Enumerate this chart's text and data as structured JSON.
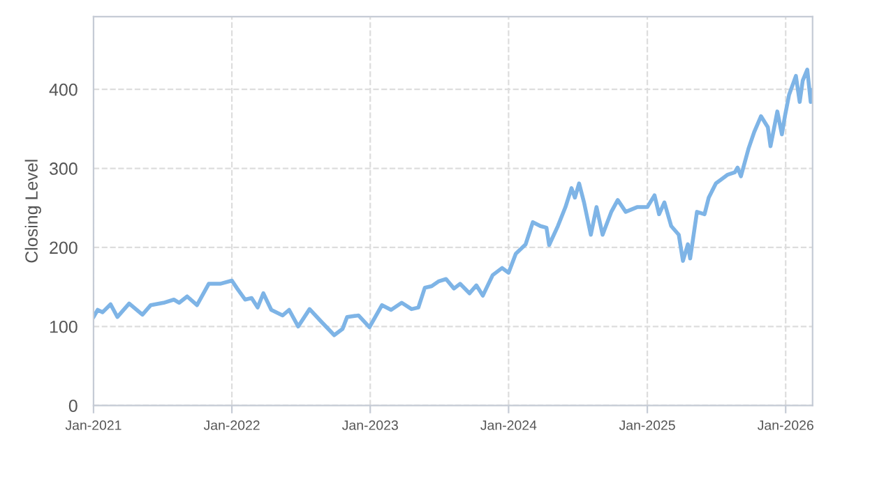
{
  "chart_data": {
    "type": "line",
    "ylabel": "Closing Level",
    "xlim": [
      "2021-01-01",
      "2026-03-13"
    ],
    "ylim": [
      0,
      492
    ],
    "yticks": [
      0,
      100,
      200,
      300,
      400
    ],
    "xticks": [
      {
        "value": "2021-01-01",
        "label": "Jan-2021"
      },
      {
        "value": "2022-01-01",
        "label": "Jan-2022"
      },
      {
        "value": "2023-01-01",
        "label": "Jan-2023"
      },
      {
        "value": "2024-01-01",
        "label": "Jan-2024"
      },
      {
        "value": "2025-01-01",
        "label": "Jan-2025"
      },
      {
        "value": "2026-01-01",
        "label": "Jan-2026"
      }
    ],
    "grid": true,
    "marker": "none",
    "line_style": "solid",
    "series": [
      {
        "color": "#7eb4e6",
        "x": [
          "2021-01-01",
          "2021-01-12",
          "2021-01-25",
          "2021-02-15",
          "2021-03-05",
          "2021-04-05",
          "2021-05-10",
          "2021-06-01",
          "2021-07-05",
          "2021-08-01",
          "2021-08-15",
          "2021-09-05",
          "2021-10-01",
          "2021-11-01",
          "2021-12-01",
          "2022-01-01",
          "2022-01-15",
          "2022-02-05",
          "2022-02-22",
          "2022-03-10",
          "2022-03-25",
          "2022-04-15",
          "2022-05-15",
          "2022-06-01",
          "2022-06-25",
          "2022-07-25",
          "2022-08-25",
          "2022-09-28",
          "2022-10-20",
          "2022-11-01",
          "2022-12-01",
          "2022-12-30",
          "2023-02-01",
          "2023-02-25",
          "2023-03-25",
          "2023-04-20",
          "2023-05-08",
          "2023-05-25",
          "2023-06-12",
          "2023-06-30",
          "2023-07-20",
          "2023-08-10",
          "2023-08-26",
          "2023-09-20",
          "2023-10-08",
          "2023-10-25",
          "2023-11-20",
          "2023-12-15",
          "2024-01-01",
          "2024-01-20",
          "2024-02-15",
          "2024-03-05",
          "2024-03-25",
          "2024-04-10",
          "2024-04-17",
          "2024-05-10",
          "2024-05-30",
          "2024-06-15",
          "2024-06-24",
          "2024-07-05",
          "2024-07-18",
          "2024-08-05",
          "2024-08-20",
          "2024-09-05",
          "2024-09-28",
          "2024-10-15",
          "2024-11-05",
          "2024-12-05",
          "2025-01-01",
          "2025-01-20",
          "2025-02-01",
          "2025-02-15",
          "2025-03-05",
          "2025-03-25",
          "2025-04-05",
          "2025-04-18",
          "2025-04-24",
          "2025-05-12",
          "2025-06-01",
          "2025-06-12",
          "2025-07-01",
          "2025-08-01",
          "2025-08-20",
          "2025-08-27",
          "2025-09-05",
          "2025-09-25",
          "2025-10-10",
          "2025-10-28",
          "2025-11-15",
          "2025-11-22",
          "2025-12-10",
          "2025-12-22",
          "2025-12-30",
          "2026-01-10",
          "2026-01-28",
          "2026-02-07",
          "2026-02-15",
          "2026-02-27",
          "2026-03-08",
          "2026-03-13"
        ],
        "values": [
          112,
          121,
          118,
          128,
          112,
          129,
          115,
          127,
          130,
          134,
          130,
          138,
          127,
          154,
          154,
          158,
          148,
          134,
          136,
          124,
          142,
          121,
          114,
          121,
          100,
          122,
          106,
          89,
          97,
          112,
          114,
          99,
          127,
          121,
          130,
          122,
          124,
          149,
          151,
          157,
          160,
          148,
          154,
          142,
          152,
          139,
          165,
          174,
          168,
          192,
          204,
          232,
          227,
          225,
          203,
          227,
          251,
          275,
          263,
          281,
          257,
          216,
          251,
          216,
          245,
          260,
          245,
          251,
          251,
          266,
          242,
          257,
          227,
          216,
          183,
          204,
          186,
          245,
          242,
          263,
          281,
          292,
          295,
          301,
          290,
          325,
          346,
          366,
          352,
          328,
          372,
          343,
          366,
          393,
          417,
          384,
          411,
          425,
          384,
          399
        ]
      }
    ]
  }
}
